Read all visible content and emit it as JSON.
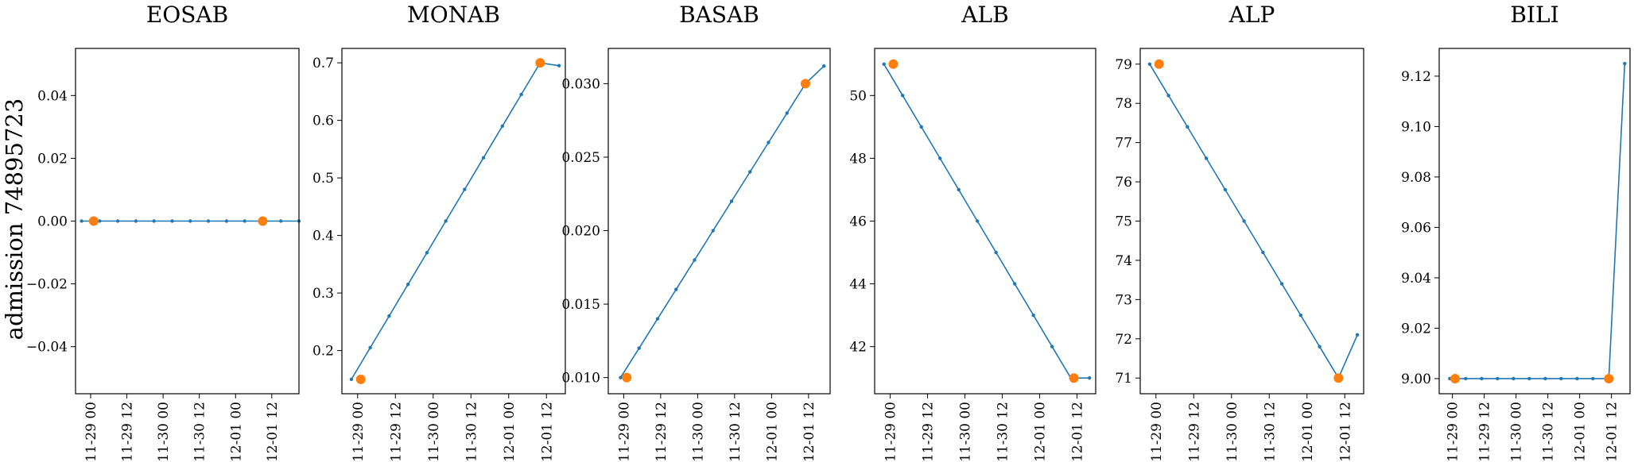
{
  "figure": {
    "ylabel": "admission 74895723"
  },
  "chart_data": [
    {
      "type": "line",
      "title": "EOSAB",
      "x": [
        "11-28 21",
        "11-29 03",
        "11-29 09",
        "11-29 15",
        "11-29 21",
        "11-30 03",
        "11-30 09",
        "11-30 15",
        "11-30 21",
        "12-01 03",
        "12-01 09",
        "12-01 15",
        "12-01 21"
      ],
      "values": [
        0,
        0,
        0,
        0,
        0,
        0,
        0,
        0,
        0,
        0,
        0,
        0,
        0
      ],
      "highlight": [
        {
          "x": "11-29 01",
          "y": 0
        },
        {
          "x": "12-01 09",
          "y": 0
        }
      ],
      "xlim": [
        "11-28 19",
        "12-01 21"
      ],
      "ylim": [
        -0.055,
        0.055
      ],
      "xticks": [
        "11-29 00",
        "11-29 12",
        "11-30 00",
        "11-30 12",
        "12-01 00",
        "12-01 12"
      ],
      "yticks": [
        -0.04,
        -0.02,
        0.0,
        0.02,
        0.04
      ],
      "yticklabels": [
        "−0.04",
        "−0.02",
        "0.00",
        "0.02",
        "0.04"
      ]
    },
    {
      "type": "line",
      "title": "MONAB",
      "x": [
        "11-28 22",
        "11-29 04",
        "11-29 10",
        "11-29 16",
        "11-29 22",
        "11-30 04",
        "11-30 10",
        "11-30 16",
        "11-30 22",
        "12-01 04",
        "12-01 10",
        "12-01 16"
      ],
      "values": [
        0.15,
        0.205,
        0.26,
        0.315,
        0.37,
        0.425,
        0.48,
        0.535,
        0.59,
        0.645,
        0.7,
        0.695
      ],
      "highlight": [
        {
          "x": "11-29 01",
          "y": 0.15
        },
        {
          "x": "12-01 10",
          "y": 0.7
        }
      ],
      "xlim": [
        "11-28 19",
        "12-01 18"
      ],
      "ylim": [
        0.125,
        0.725
      ],
      "xticks": [
        "11-29 00",
        "11-29 12",
        "11-30 00",
        "11-30 12",
        "12-01 00",
        "12-01 12"
      ],
      "yticks": [
        0.2,
        0.3,
        0.4,
        0.5,
        0.6,
        0.7
      ],
      "yticklabels": [
        "0.2",
        "0.3",
        "0.4",
        "0.5",
        "0.6",
        "0.7"
      ]
    },
    {
      "type": "line",
      "title": "BASAB",
      "x": [
        "11-28 23",
        "11-29 05",
        "11-29 11",
        "11-29 17",
        "11-29 23",
        "11-30 05",
        "11-30 11",
        "11-30 17",
        "11-30 23",
        "12-01 05",
        "12-01 11",
        "12-01 17"
      ],
      "values": [
        0.01,
        0.012,
        0.014,
        0.016,
        0.018,
        0.02,
        0.022,
        0.024,
        0.026,
        0.028,
        0.03,
        0.0312
      ],
      "highlight": [
        {
          "x": "11-29 01",
          "y": 0.01
        },
        {
          "x": "12-01 11",
          "y": 0.03
        }
      ],
      "xlim": [
        "11-28 19",
        "12-01 19"
      ],
      "ylim": [
        0.0089,
        0.0324
      ],
      "xticks": [
        "11-29 00",
        "11-29 12",
        "11-30 00",
        "11-30 12",
        "12-01 00",
        "12-01 12"
      ],
      "yticks": [
        0.01,
        0.015,
        0.02,
        0.025,
        0.03
      ],
      "yticklabels": [
        "0.010",
        "0.015",
        "0.020",
        "0.025",
        "0.030"
      ]
    },
    {
      "type": "line",
      "title": "ALB",
      "x": [
        "11-28 22",
        "11-29 04",
        "11-29 10",
        "11-29 16",
        "11-29 22",
        "11-30 04",
        "11-30 10",
        "11-30 16",
        "11-30 22",
        "12-01 04",
        "12-01 10",
        "12-01 16"
      ],
      "values": [
        51,
        50,
        49,
        48,
        47,
        46,
        45,
        44,
        43,
        42,
        41,
        41
      ],
      "highlight": [
        {
          "x": "11-29 01",
          "y": 51
        },
        {
          "x": "12-01 11",
          "y": 41
        }
      ],
      "xlim": [
        "11-28 19",
        "12-01 18"
      ],
      "ylim": [
        40.5,
        51.5
      ],
      "xticks": [
        "11-29 00",
        "11-29 12",
        "11-30 00",
        "11-30 12",
        "12-01 00",
        "12-01 12"
      ],
      "yticks": [
        42,
        44,
        46,
        48,
        50
      ],
      "yticklabels": [
        "42",
        "44",
        "46",
        "48",
        "50"
      ]
    },
    {
      "type": "line",
      "title": "ALP",
      "x": [
        "11-28 22",
        "11-29 04",
        "11-29 10",
        "11-29 16",
        "11-29 22",
        "11-30 04",
        "11-30 10",
        "11-30 16",
        "11-30 22",
        "12-01 04",
        "12-01 10",
        "12-01 16"
      ],
      "values": [
        79,
        78.2,
        77.4,
        76.6,
        75.8,
        75,
        74.2,
        73.4,
        72.6,
        71.8,
        71,
        72.1
      ],
      "highlight": [
        {
          "x": "11-29 01",
          "y": 79
        },
        {
          "x": "12-01 10",
          "y": 71
        }
      ],
      "xlim": [
        "11-28 19",
        "12-01 18"
      ],
      "ylim": [
        70.6,
        79.4
      ],
      "xticks": [
        "11-29 00",
        "11-29 12",
        "11-30 00",
        "11-30 12",
        "12-01 00",
        "12-01 12"
      ],
      "yticks": [
        71,
        72,
        73,
        74,
        75,
        76,
        77,
        78,
        79
      ],
      "yticklabels": [
        "71",
        "72",
        "73",
        "74",
        "75",
        "76",
        "77",
        "78",
        "79"
      ]
    },
    {
      "type": "line",
      "title": "BILI",
      "x": [
        "11-28 23",
        "11-29 05",
        "11-29 11",
        "11-29 17",
        "11-29 23",
        "11-30 05",
        "11-30 11",
        "11-30 17",
        "11-30 23",
        "12-01 05",
        "12-01 11",
        "12-01 17"
      ],
      "values": [
        9,
        9,
        9,
        9,
        9,
        9,
        9,
        9,
        9,
        9,
        9,
        9.125
      ],
      "highlight": [
        {
          "x": "11-29 01",
          "y": 9
        },
        {
          "x": "12-01 11",
          "y": 9
        }
      ],
      "xlim": [
        "11-28 19",
        "12-01 19"
      ],
      "ylim": [
        8.994,
        9.131
      ],
      "xticks": [
        "11-29 00",
        "11-29 12",
        "11-30 00",
        "11-30 12",
        "12-01 00",
        "12-01 12"
      ],
      "yticks": [
        9.0,
        9.02,
        9.04,
        9.06,
        9.08,
        9.1,
        9.12
      ],
      "yticklabels": [
        "9.00",
        "9.02",
        "9.04",
        "9.06",
        "9.08",
        "9.10",
        "9.12"
      ]
    }
  ]
}
